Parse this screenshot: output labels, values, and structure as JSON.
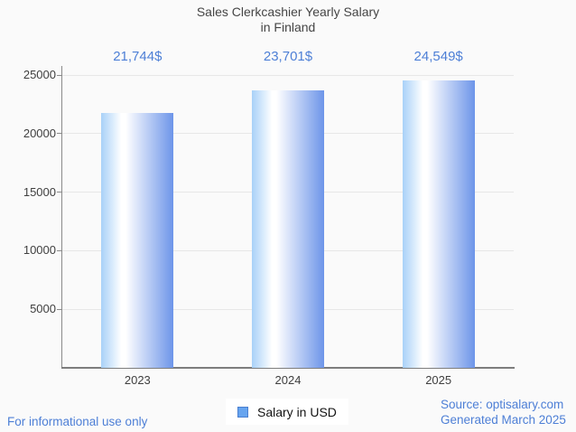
{
  "page": {
    "background": "#fafafa",
    "accent_blue": "#4d7fd6"
  },
  "header": {
    "title_line1": "Sales Clerkcashier Yearly Salary",
    "title_line2": "in Finland"
  },
  "chart_data": {
    "type": "bar",
    "title": "Sales Clerkcashier Yearly Salary in Finland",
    "categories": [
      "2023",
      "2024",
      "2025"
    ],
    "series": [
      {
        "name": "Salary in USD",
        "values": [
          21744,
          23701,
          24549
        ]
      }
    ],
    "value_labels": [
      "21,744$",
      "23,701$",
      "24,549$"
    ],
    "y_ticks": [
      5000,
      10000,
      15000,
      20000,
      25000
    ],
    "ylim": [
      0,
      25000
    ],
    "xlabel": "",
    "ylabel": "",
    "grid": true,
    "legend_position": "bottom",
    "bar_gradient": [
      "#a8d1f8",
      "#ffffff",
      "#6d95e9"
    ],
    "value_label_color": "#4d7fd6",
    "gridline_color": "#e7e7e7",
    "axis_color": "#8a8a8a"
  },
  "legend": {
    "label": "Salary in USD",
    "swatch_fill": "#66a4ef",
    "swatch_border": "#4a7fd0"
  },
  "footer": {
    "left_note": "For informational use only",
    "source": "Source: optisalary.com",
    "generated": "Generated March 2025"
  }
}
